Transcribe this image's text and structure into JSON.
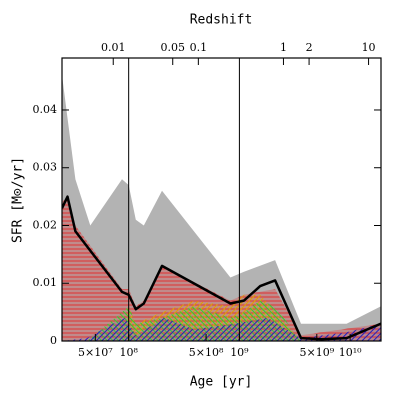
{
  "chart_data": {
    "type": "area",
    "title": "Redshift",
    "xlabel": "Age  [yr]",
    "ylabel": "SFR  [M⊙/yr]",
    "xscale": "log",
    "xlim": [
      25000000,
      19000000000
    ],
    "xticks": [
      {
        "value": 50000000,
        "label": "5×10⁷"
      },
      {
        "value": 100000000,
        "label": "10⁸"
      },
      {
        "value": 500000000,
        "label": "5×10⁸"
      },
      {
        "value": 1000000000,
        "label": "10⁹"
      },
      {
        "value": 5000000000,
        "label": "5×10⁹"
      },
      {
        "value": 10000000000,
        "label": "10¹⁰"
      }
    ],
    "x2scale": "log",
    "x2lim": [
      0.0025,
      14
    ],
    "x2ticks": [
      0.01,
      0.05,
      0.1,
      1,
      2,
      10
    ],
    "ylim": [
      0,
      0.049
    ],
    "yticks": [
      0,
      0.01,
      0.02,
      0.03,
      0.04
    ],
    "vlines": [
      100000000,
      1000000000
    ],
    "series": [
      {
        "style": "fill",
        "color": "#b3b3b3",
        "x": [
          25000000,
          33000000,
          45000000,
          87000000,
          100000000,
          116000000,
          137000000,
          200000000,
          830000000,
          1100000000,
          2100000000,
          3600000000,
          9300000000,
          19000000000
        ],
        "values": [
          0.046,
          0.028,
          0.02,
          0.028,
          0.027,
          0.021,
          0.02,
          0.026,
          0.011,
          0.012,
          0.014,
          0.003,
          0.003,
          0.006
        ]
      },
      {
        "style": "horizontal",
        "color": "#e03030",
        "x": [
          25000000,
          28000000,
          33000000,
          87000000,
          100000000,
          116000000,
          137000000,
          200000000,
          830000000,
          1100000000,
          2100000000,
          3600000000,
          19000000000
        ],
        "values": [
          0.024,
          0.025,
          0.02,
          0.009,
          0.009,
          0.006,
          0.007,
          0.013,
          0.007,
          0.008,
          0.009,
          0.001,
          0.003
        ]
      },
      {
        "style": "antidiagonal",
        "color": "#e0a000",
        "x": [
          87000000,
          100000000,
          116000000,
          200000000,
          390000000,
          830000000,
          1100000000,
          1540000000,
          2100000000,
          3600000000
        ],
        "values": [
          0,
          0.006,
          0.003,
          0.005,
          0.007,
          0.006,
          0.008,
          0.008,
          0.005,
          0
        ]
      },
      {
        "style": "diagonal",
        "color": "#30d030",
        "x": [
          42000000,
          87000000,
          100000000,
          116000000,
          200000000,
          390000000,
          830000000,
          1100000000,
          1540000000,
          2100000000,
          3600000000
        ],
        "values": [
          0,
          0.005,
          0.006,
          0.003,
          0.004,
          0.006,
          0.004,
          0.005,
          0.007,
          0.006,
          0
        ]
      },
      {
        "style": "antidiagonal",
        "color": "#2020c0",
        "x": [
          25000000,
          42000000,
          72000000,
          93000000,
          116000000,
          210000000,
          390000000,
          920000000,
          1800000000,
          3600000000,
          9300000000,
          19000000000
        ],
        "values": [
          0,
          0.0005,
          0.003,
          0.004,
          0.001,
          0.004,
          0.002,
          0.003,
          0.004,
          0.0005,
          0.0015,
          0.003
        ]
      },
      {
        "style": "line",
        "color": "#000000",
        "x": [
          25000000,
          28000000,
          33000000,
          87000000,
          100000000,
          116000000,
          137000000,
          200000000,
          830000000,
          1100000000,
          1540000000,
          2100000000,
          3600000000,
          5500000000,
          9300000000,
          19000000000
        ],
        "values": [
          0.023,
          0.025,
          0.019,
          0.0085,
          0.008,
          0.0055,
          0.0065,
          0.013,
          0.0065,
          0.007,
          0.0095,
          0.0105,
          0.0005,
          0.0003,
          0.0005,
          0.003
        ]
      }
    ]
  }
}
